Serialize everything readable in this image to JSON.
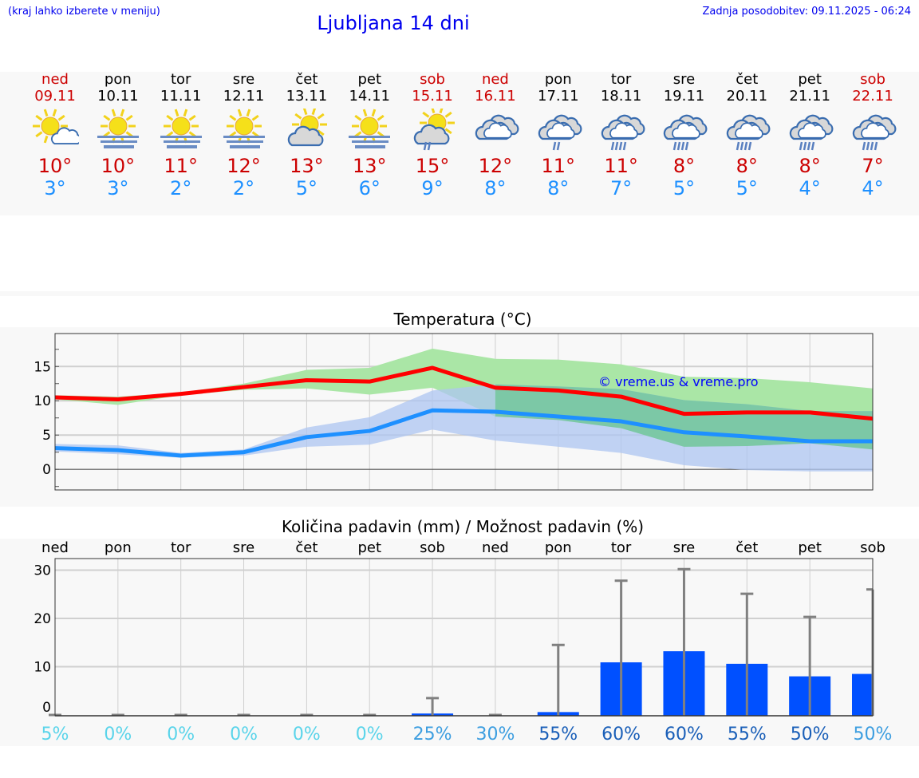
{
  "header": {
    "hint": "(kraj lahko izberete v meniju)",
    "title": "Ljubljana 14 dni",
    "updated": "Zadnja posodobitev: 09.11.2025 - 06:24"
  },
  "colors": {
    "weekend": "#cc0000",
    "weekday": "#000000",
    "max": "#ff0000",
    "min": "#1e90ff",
    "max_band": "#aae6a6",
    "min_band": "#adc6f2",
    "bar": "#0050ff",
    "error": "#808080"
  },
  "days": [
    {
      "name": "ned",
      "date": "09.11",
      "weekend": true,
      "icon": "sun-partly-cloudy-icon",
      "max": "10°",
      "min": "3°"
    },
    {
      "name": "pon",
      "date": "10.11",
      "weekend": false,
      "icon": "sun-fog-icon",
      "max": "10°",
      "min": "3°"
    },
    {
      "name": "tor",
      "date": "11.11",
      "weekend": false,
      "icon": "sun-fog-icon",
      "max": "11°",
      "min": "2°"
    },
    {
      "name": "sre",
      "date": "12.11",
      "weekend": false,
      "icon": "sun-fog-icon",
      "max": "12°",
      "min": "2°"
    },
    {
      "name": "čet",
      "date": "13.11",
      "weekend": false,
      "icon": "sun-cloud-icon",
      "max": "13°",
      "min": "5°"
    },
    {
      "name": "pet",
      "date": "14.11",
      "weekend": false,
      "icon": "sun-fog-icon",
      "max": "13°",
      "min": "6°"
    },
    {
      "name": "sob",
      "date": "15.11",
      "weekend": true,
      "icon": "sun-cloud-drizzle-icon",
      "max": "15°",
      "min": "9°"
    },
    {
      "name": "ned",
      "date": "16.11",
      "weekend": true,
      "icon": "cloudy-icon",
      "max": "12°",
      "min": "8°"
    },
    {
      "name": "pon",
      "date": "17.11",
      "weekend": false,
      "icon": "cloudy-drizzle-icon",
      "max": "11°",
      "min": "8°"
    },
    {
      "name": "tor",
      "date": "18.11",
      "weekend": false,
      "icon": "cloudy-rain-icon",
      "max": "11°",
      "min": "7°"
    },
    {
      "name": "sre",
      "date": "19.11",
      "weekend": false,
      "icon": "cloudy-rain-icon",
      "max": "8°",
      "min": "5°"
    },
    {
      "name": "čet",
      "date": "20.11",
      "weekend": false,
      "icon": "cloudy-rain-icon",
      "max": "8°",
      "min": "5°"
    },
    {
      "name": "pet",
      "date": "21.11",
      "weekend": false,
      "icon": "cloudy-rain-icon",
      "max": "8°",
      "min": "4°"
    },
    {
      "name": "sob",
      "date": "22.11",
      "weekend": true,
      "icon": "cloudy-rain-icon",
      "max": "7°",
      "min": "4°"
    }
  ],
  "chart_data": [
    {
      "type": "line",
      "title": "Temperatura (°C)",
      "watermark": "© vreme.us & vreme.pro",
      "categories": [
        "09.11",
        "10.11",
        "11.11",
        "12.11",
        "13.11",
        "14.11",
        "15.11",
        "16.11",
        "17.11",
        "18.11",
        "19.11",
        "20.11",
        "21.11",
        "22.11"
      ],
      "ylim": [
        -3,
        19.8
      ],
      "yticks": [
        0,
        5,
        10,
        15
      ],
      "grid": true,
      "series": [
        {
          "values": [
            10.5,
            10.2,
            11.0,
            12.0,
            13.0,
            12.8,
            14.8,
            11.9,
            11.5,
            10.6,
            8.1,
            8.3,
            8.3,
            7.4
          ]
        },
        {
          "values": [
            3.1,
            2.8,
            2.0,
            2.5,
            4.7,
            5.6,
            8.6,
            8.4,
            7.7,
            7.0,
            5.4,
            4.8,
            4.1,
            4.1
          ]
        }
      ],
      "bands": [
        {
          "upper": [
            10.8,
            10.6,
            11.2,
            12.5,
            14.5,
            14.8,
            17.6,
            16.1,
            16.0,
            15.3,
            13.5,
            13.3,
            12.7,
            11.8
          ],
          "lower": [
            10.2,
            9.4,
            10.8,
            11.6,
            11.8,
            10.9,
            11.9,
            7.7,
            7.2,
            6.0,
            3.3,
            3.4,
            3.8,
            2.9
          ]
        },
        {
          "upper": [
            3.7,
            3.5,
            2.4,
            2.9,
            6.1,
            7.6,
            11.5,
            12.4,
            12.1,
            11.7,
            10.1,
            9.5,
            8.5,
            8.5
          ],
          "lower": [
            2.6,
            2.2,
            1.7,
            2.0,
            3.3,
            3.6,
            5.8,
            4.2,
            3.3,
            2.4,
            0.6,
            -0.1,
            -0.3,
            -0.3
          ]
        }
      ]
    },
    {
      "type": "bar",
      "title": "Količina padavin (mm) / Možnost padavin (%)",
      "categories": [
        "ned",
        "pon",
        "tor",
        "sre",
        "čet",
        "pet",
        "sob",
        "ned",
        "pon",
        "tor",
        "sre",
        "čet",
        "pet",
        "sob"
      ],
      "ylim": [
        0,
        32.5
      ],
      "yticks": [
        0,
        10,
        20,
        30
      ],
      "grid": true,
      "values": [
        0,
        0,
        0,
        0,
        0,
        0,
        0.3,
        0,
        0.6,
        10.9,
        13.2,
        10.6,
        8.0,
        8.5
      ],
      "error_max": [
        0,
        0,
        0,
        0,
        0,
        0,
        3.5,
        0,
        14.5,
        27.8,
        30.2,
        25.1,
        20.3,
        26.0
      ],
      "probability": [
        "5%",
        "0%",
        "0%",
        "0%",
        "0%",
        "0%",
        "25%",
        "30%",
        "55%",
        "60%",
        "60%",
        "55%",
        "50%",
        "50%"
      ],
      "probability_colors": [
        "#5ad4ea",
        "#5ad4ea",
        "#5ad4ea",
        "#5ad4ea",
        "#5ad4ea",
        "#5ad4ea",
        "#3d9ee0",
        "#3d9ee0",
        "#1a5fb8",
        "#1a5fb8",
        "#1a5fb8",
        "#1a5fb8",
        "#1a5fb8",
        "#3d9ee0"
      ]
    }
  ]
}
